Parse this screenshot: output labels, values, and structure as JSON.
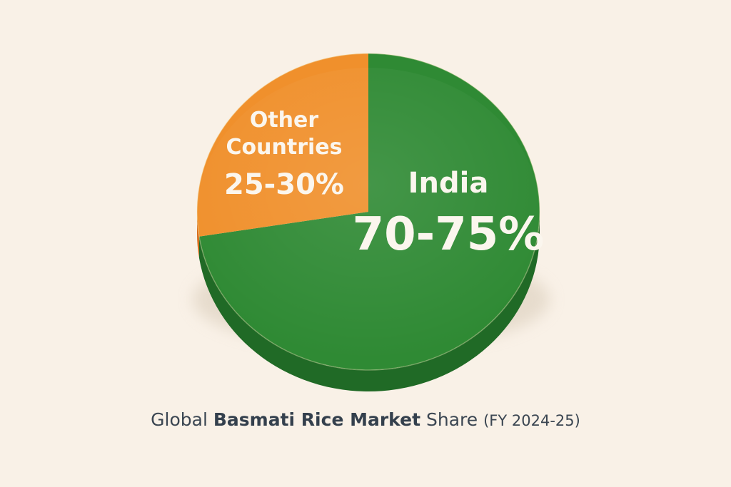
{
  "chart_data": {
    "type": "pie",
    "style": "3d",
    "title": {
      "prefix": "Global",
      "bold": "Basmati Rice Market",
      "suffix": "Share",
      "period": "(FY 2024-25)"
    },
    "slices": [
      {
        "name_lines": [
          "India"
        ],
        "value_text": "70-75%",
        "value": 72.5,
        "color": "#2f8a34",
        "side_color": "#206a26"
      },
      {
        "name_lines": [
          "Other",
          "Countries"
        ],
        "value_text": "25-30%",
        "value": 27.5,
        "color": "#f0902c",
        "side_color": "#d56a18"
      }
    ]
  }
}
